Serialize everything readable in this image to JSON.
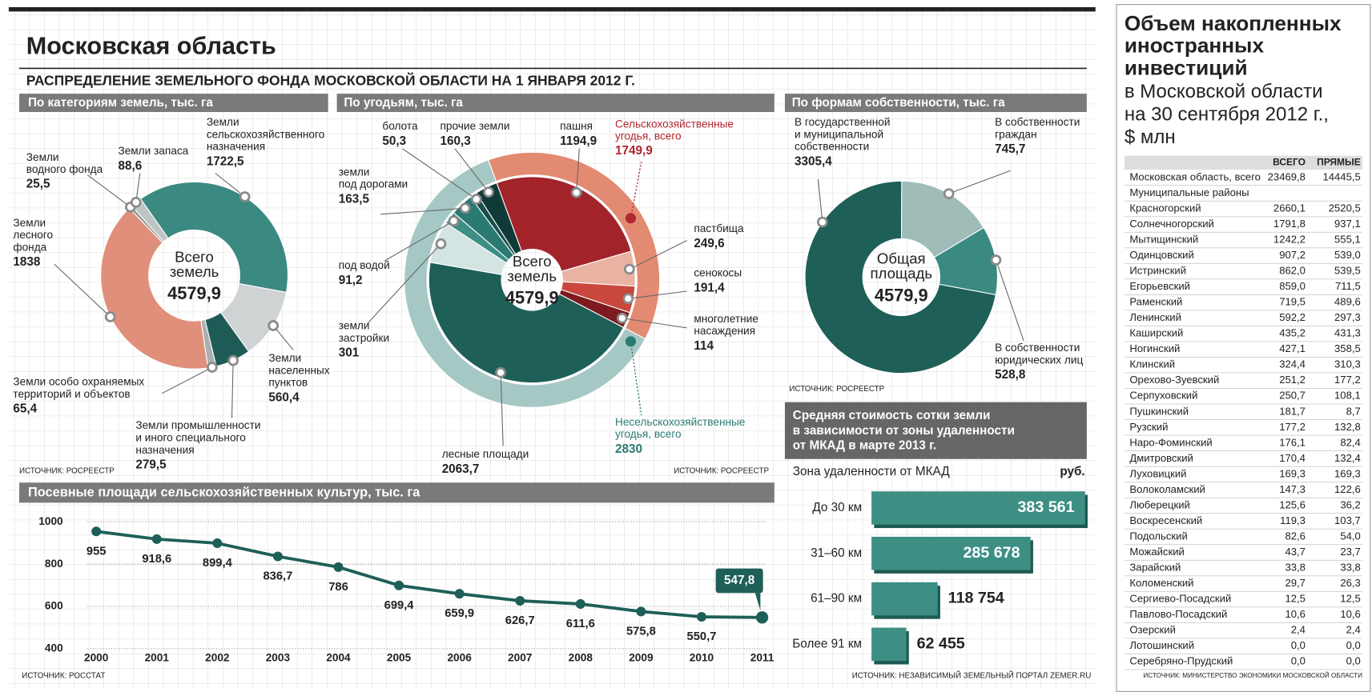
{
  "header": {
    "title": "Московская область",
    "subtitle": "РАСПРЕДЕЛЕНИЕ ЗЕМЕЛЬНОГО ФОНДА МОСКОВСКОЙ ОБЛАСТИ НА 1 ЯНВАРЯ 2012 Г."
  },
  "chart_data": [
    {
      "type": "donut",
      "title": "По категориям земель, тыс. га",
      "center_label": "Всего\nземель",
      "total": {
        "value": 4579.9,
        "label": "4579,9"
      },
      "categories": [
        "Земли\nсельскохозяйственного\nназначения",
        "Земли\nнаселенных\nпунктов",
        "Земли промышленности\nи иного специального\nназначения",
        "Земли особо охраняемых\nтерриторий и объектов",
        "Земли\nлесного\nфонда",
        "Земли\nводного фонда",
        "Земли запаса"
      ],
      "values": [
        1722.5,
        560.4,
        279.5,
        65.4,
        1838,
        25.5,
        88.6
      ],
      "value_labels": [
        "1722,5",
        "560,4",
        "279,5",
        "65,4",
        "1838",
        "25,5",
        "88,6"
      ],
      "colors": [
        "#3a8a82",
        "#cfd3d3",
        "#1f5b56",
        "#a9b0b0",
        "#e0907a",
        "#8e9696",
        "#bfc5c5"
      ],
      "source": "ИСТОЧНИК: РОСРЕЕСТР"
    },
    {
      "type": "donut",
      "title": "По угодьям, тыс. га",
      "center_label": "Всего\nземель",
      "total": {
        "value": 4579.9,
        "label": "4579,9"
      },
      "categories": [
        "пашня",
        "пастбища",
        "сенокосы",
        "многолетние\nнасаждения",
        "лесные площади",
        "земли\nзастройки",
        "под водой",
        "земли\nпод дорогами",
        "болота",
        "прочие земли"
      ],
      "values": [
        1194.9,
        249.6,
        191.4,
        114,
        2063.7,
        301,
        91.2,
        163.5,
        50.3,
        160.3
      ],
      "value_labels": [
        "1194,9",
        "249,6",
        "191,4",
        "114",
        "2063,7",
        "301",
        "91,2",
        "163,5",
        "50,3",
        "160,3"
      ],
      "colors": [
        "#a3232b",
        "#eab2a2",
        "#c9473d",
        "#7d1a1e",
        "#1e5f58",
        "#d3e4e2",
        "#3d8f86",
        "#2a7a72",
        "#1a4f4b",
        "#0f3a37"
      ],
      "outer": {
        "categories": [
          "Сельскохозяйственные\nугодья, всего",
          "Несельскохозяйственные\nугодья, всего"
        ],
        "values": [
          1749.9,
          2830
        ],
        "value_labels": [
          "1749,9",
          "2830"
        ],
        "colors": [
          "#e38a72",
          "#a6c8c4"
        ],
        "label_colors": [
          "#b0272f",
          "#2a7a72"
        ]
      },
      "source": "ИСТОЧНИК: РОСРЕЕСТР"
    },
    {
      "type": "donut",
      "title": "По формам собственности, тыс. га",
      "center_label": "Общая\nплощадь",
      "total": {
        "value": 4579.9,
        "label": "4579,9"
      },
      "categories": [
        "В государственной\nи муниципальной\nсобственности",
        "В собственности\nграждан",
        "В собственности\nюридических лиц"
      ],
      "values": [
        3305.4,
        745.7,
        528.8
      ],
      "value_labels": [
        "3305,4",
        "745,7",
        "528,8"
      ],
      "colors": [
        "#1e5f58",
        "#9fbcb8",
        "#3a8a82"
      ],
      "source": "ИСТОЧНИК: РОСРЕЕСТР"
    },
    {
      "type": "line",
      "title": "Посевные площади сельскохозяйственных культур, тыс. га",
      "x": [
        2000,
        2001,
        2002,
        2003,
        2004,
        2005,
        2006,
        2007,
        2008,
        2009,
        2010,
        2011
      ],
      "values": [
        955,
        918.6,
        899.4,
        836.7,
        786,
        699.4,
        659.9,
        626.7,
        611.6,
        575.8,
        550.7,
        547.8
      ],
      "value_labels": [
        "955",
        "918,6",
        "899,4",
        "836,7",
        "786",
        "699,4",
        "659,9",
        "626,7",
        "611,6",
        "575,8",
        "550,7",
        "547,8"
      ],
      "ylim": [
        400,
        1000
      ],
      "yticks": [
        400,
        600,
        800,
        1000
      ],
      "grid": true,
      "color": "#1e5f58",
      "source": "ИСТОЧНИК: РОССТАТ"
    },
    {
      "type": "bar",
      "orientation": "horizontal",
      "title": "Средняя стоимость сотки земли\nв зависимости от зоны удаленности\nот МКАД в марте 2013 г.",
      "category_header": "Зона удаленности от МКАД",
      "unit": "руб.",
      "categories": [
        "До 30 км",
        "31–60 км",
        "61–90 км",
        "Более 91 км"
      ],
      "values": [
        383561,
        285678,
        118754,
        62455
      ],
      "value_labels": [
        "383 561",
        "285 678",
        "118 754",
        "62 455"
      ],
      "color": "#3d8f84",
      "source": "ИСТОЧНИК: НЕЗАВИСИМЫЙ ЗЕМЕЛЬНЫЙ ПОРТАЛ ZEMER.RU"
    }
  ],
  "table": {
    "title": "Объем накопленных\nиностранных\nинвестиций",
    "subtitle": "в Московской области\nна 30 сентября 2012 г.,\n$ млн",
    "columns": [
      "ВСЕГО",
      "ПРЯМЫЕ"
    ],
    "rows": [
      [
        "Московская область, всего",
        "23469,8",
        "14445,5"
      ],
      [
        "Муниципальные районы"
      ],
      [
        "Красногорский",
        "2660,1",
        "2520,5"
      ],
      [
        "Солнечногорский",
        "1791,8",
        "937,1"
      ],
      [
        "Мытищинский",
        "1242,2",
        "555,1"
      ],
      [
        "Одинцовский",
        "907,2",
        "539,0"
      ],
      [
        "Истринский",
        "862,0",
        "539,5"
      ],
      [
        "Егорьевский",
        "859,0",
        "711,5"
      ],
      [
        "Раменский",
        "719,5",
        "489,6"
      ],
      [
        "Ленинский",
        "592,2",
        "297,3"
      ],
      [
        "Каширский",
        "435,2",
        "431,3"
      ],
      [
        "Ногинский",
        "427,1",
        "358,5"
      ],
      [
        "Клинский",
        "324,4",
        "310,3"
      ],
      [
        "Орехово-Зуевский",
        "251,2",
        "177,2"
      ],
      [
        "Серпуховский",
        "250,7",
        "108,1"
      ],
      [
        "Пушкинский",
        "181,7",
        "8,7"
      ],
      [
        "Рузский",
        "177,2",
        "132,8"
      ],
      [
        "Наро-Фоминский",
        "176,1",
        "82,4"
      ],
      [
        "Дмитровский",
        "170,4",
        "132,4"
      ],
      [
        "Луховицкий",
        "169,3",
        "169,3"
      ],
      [
        "Волоколамский",
        "147,3",
        "122,6"
      ],
      [
        "Люберецкий",
        "125,6",
        "36,2"
      ],
      [
        "Воскресенский",
        "119,3",
        "103,7"
      ],
      [
        "Подольский",
        "82,6",
        "54,0"
      ],
      [
        "Можайский",
        "43,7",
        "23,7"
      ],
      [
        "Зарайский",
        "33,8",
        "33,8"
      ],
      [
        "Коломенский",
        "29,7",
        "26,3"
      ],
      [
        "Сергиево-Посадский",
        "12,5",
        "12,5"
      ],
      [
        "Павлово-Посадский",
        "10,6",
        "10,6"
      ],
      [
        "Озерский",
        "2,4",
        "2,4"
      ],
      [
        "Лотошинский",
        "0,0",
        "0,0"
      ],
      [
        "Серебряно-Прудский",
        "0,0",
        "0,0"
      ]
    ],
    "source": "ИСТОЧНИК: МИНИСТЕРСТВО ЭКОНОМИКИ МОСКОВСКОЙ ОБЛАСТИ"
  }
}
